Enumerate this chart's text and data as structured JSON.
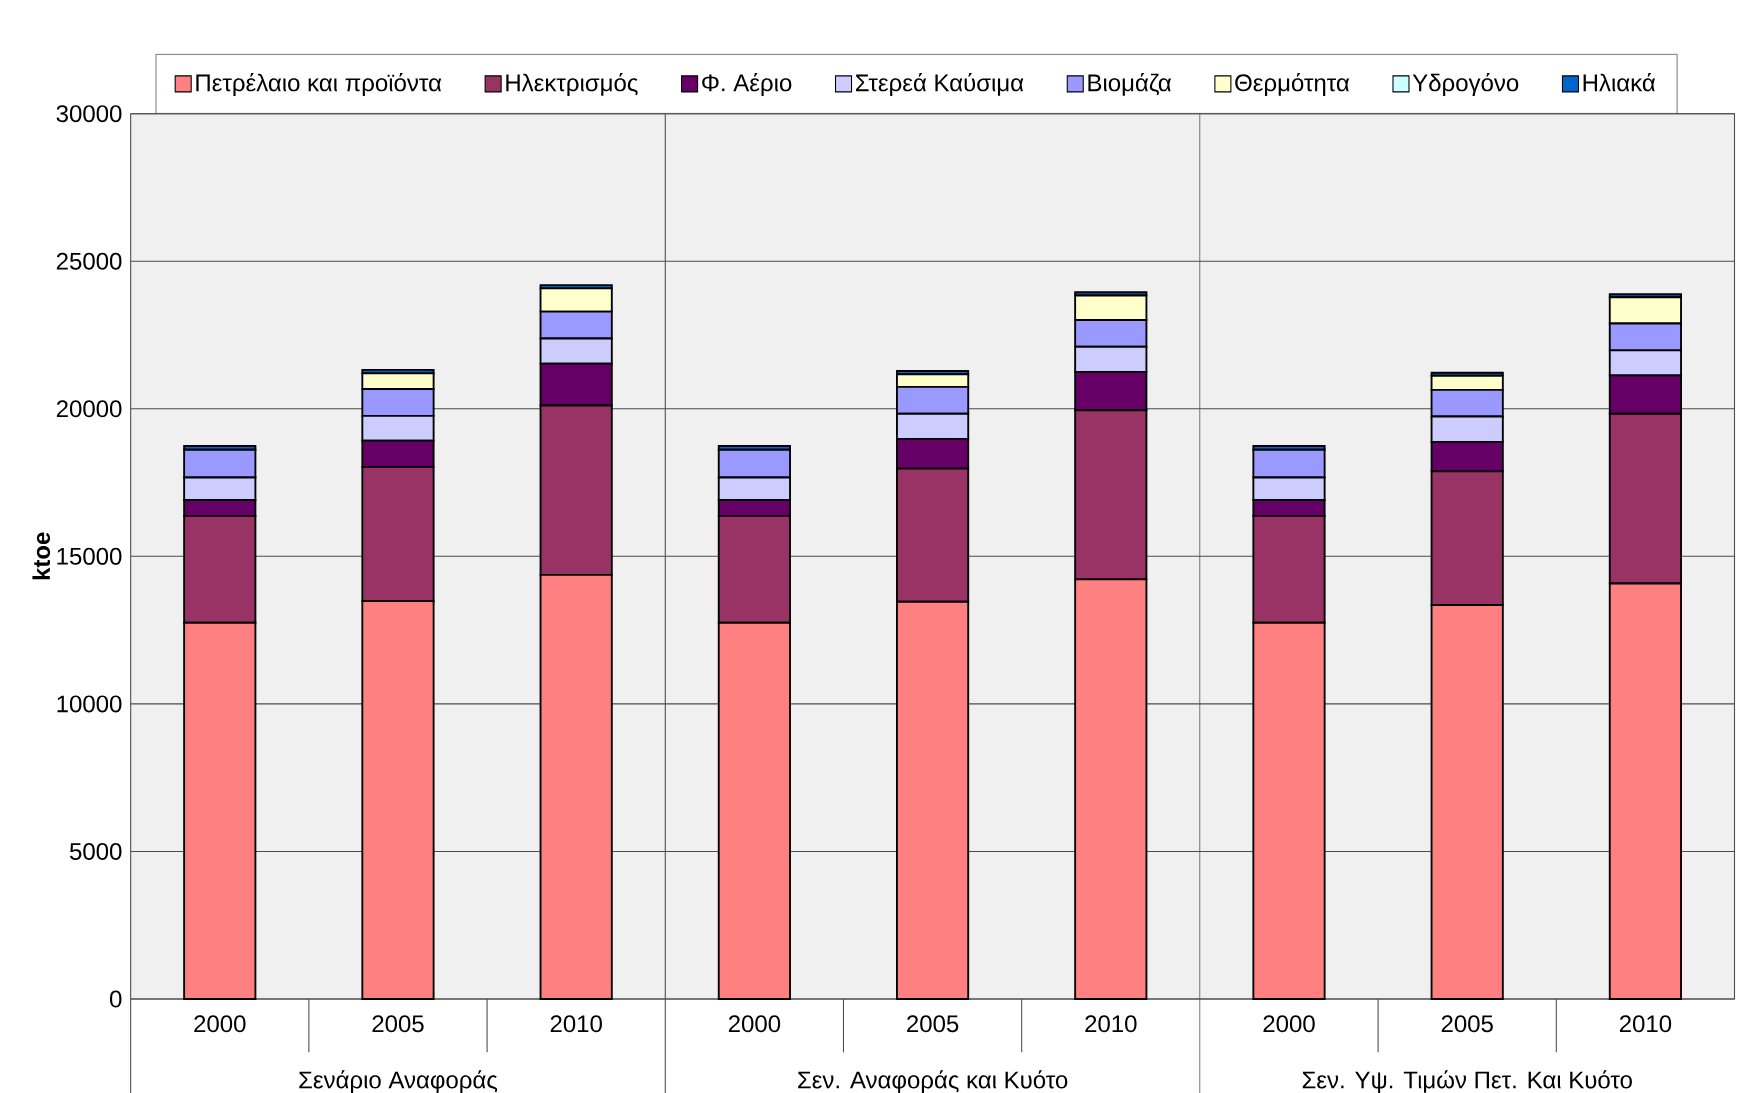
{
  "chart_data": {
    "type": "bar",
    "stacked": true,
    "ylabel": "ktoe",
    "categories": [
      "2000",
      "2005",
      "2010",
      "2000",
      "2005",
      "2010",
      "2000",
      "2005",
      "2010"
    ],
    "annotations": [
      "Σενάριο Αναφοράς",
      "Σεν. Αναφοράς και Κυότο",
      "Σεν. Υψ. Τιμών Πετ. Και Κυότο"
    ],
    "series": [
      {
        "name": "Πετρέλαιο και προϊόντα",
        "color": "#ff8080",
        "values": [
          12750,
          13480,
          14370,
          12750,
          13460,
          14220,
          12750,
          13350,
          14080
        ]
      },
      {
        "name": "Ηλεκτρισμός",
        "color": "#993366",
        "values": [
          3620,
          4550,
          5740,
          3620,
          4510,
          5730,
          3620,
          4530,
          5750
        ]
      },
      {
        "name": "Φ. Αέριο",
        "color": "#660066",
        "values": [
          540,
          890,
          1420,
          540,
          1010,
          1300,
          540,
          1000,
          1300
        ]
      },
      {
        "name": "Στερεά Καύσιμα",
        "color": "#ccccff",
        "values": [
          760,
          840,
          850,
          760,
          850,
          850,
          760,
          860,
          850
        ]
      },
      {
        "name": "Βιομάζα",
        "color": "#9999ff",
        "values": [
          940,
          910,
          910,
          940,
          910,
          910,
          940,
          900,
          910
        ]
      },
      {
        "name": "Θερμότητα",
        "color": "#ffffcc",
        "values": [
          0,
          530,
          790,
          0,
          430,
          830,
          0,
          480,
          890
        ]
      },
      {
        "name": "Υδρογόνο",
        "color": "#ccffff",
        "values": [
          0,
          0,
          0,
          0,
          0,
          0,
          0,
          0,
          0
        ]
      },
      {
        "name": "Ηλιακά",
        "color": "#0066cc",
        "values": [
          130,
          120,
          110,
          130,
          110,
          110,
          130,
          100,
          100
        ]
      }
    ],
    "ylim": [
      0,
      30000
    ],
    "yticks": [
      0,
      5000,
      10000,
      15000,
      20000,
      25000,
      30000
    ],
    "grid": "y",
    "legend": "top"
  }
}
